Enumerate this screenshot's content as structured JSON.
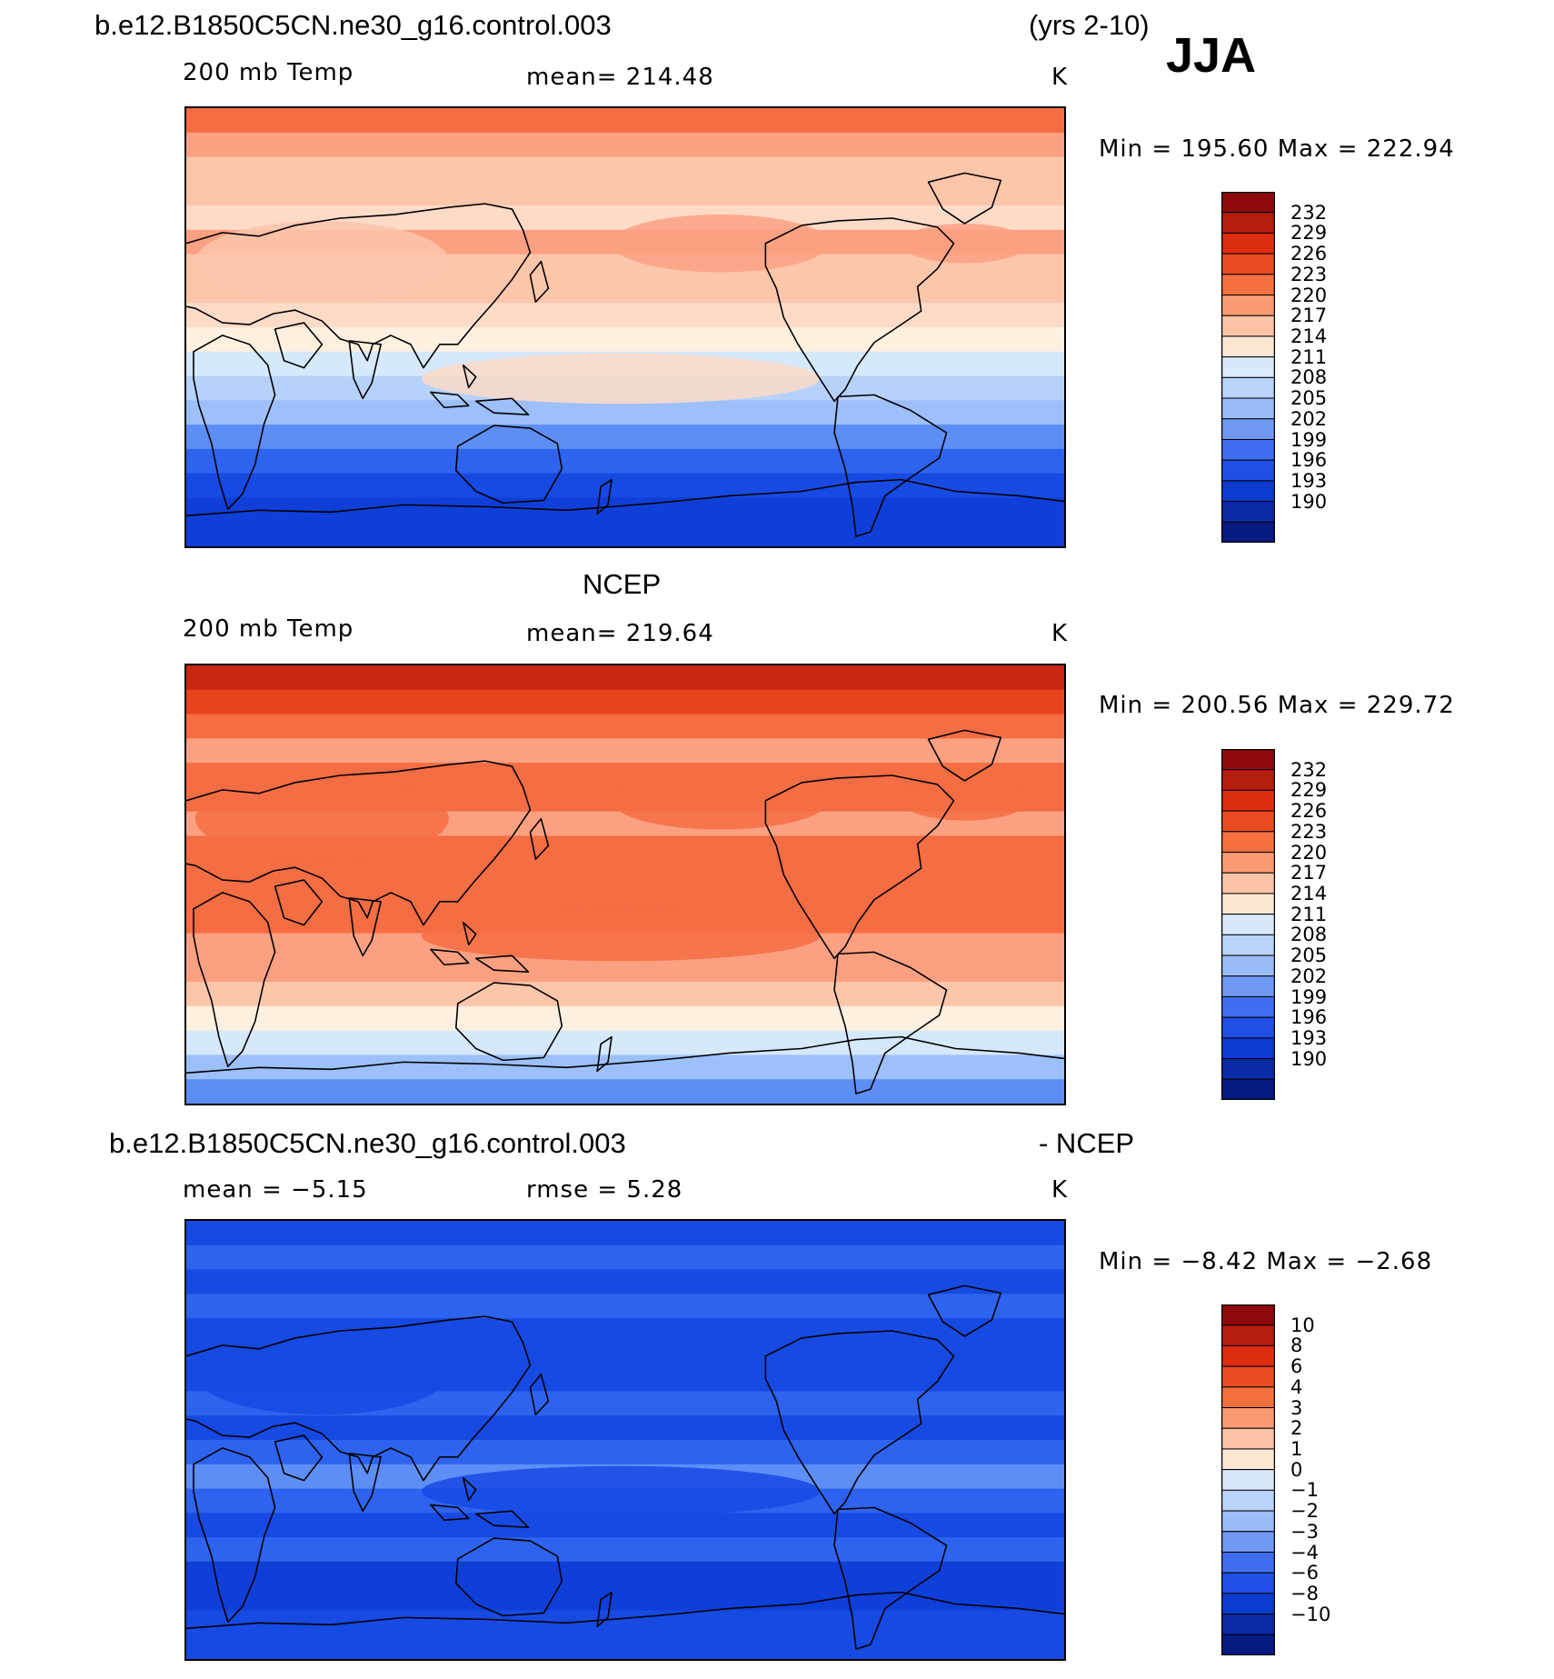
{
  "header": {
    "case_name": "b.e12.B1850C5CN.ne30_g16.control.003",
    "years": "(yrs 2-10)",
    "season": "JJA"
  },
  "panels": [
    {
      "title": "",
      "variable": "200 mb Temp",
      "stat_left": "200 mb Temp",
      "mean_text": "mean= 214.48",
      "units": "K",
      "minmax": "Min = 195.60 Max = 222.94",
      "colorbar_labels": [
        "232",
        "229",
        "226",
        "223",
        "220",
        "217",
        "214",
        "211",
        "208",
        "205",
        "202",
        "199",
        "196",
        "193",
        "190"
      ],
      "field_bands": [
        "#f46d43",
        "#fca082",
        "#fcc6ab",
        "#fcc6ab",
        "#fddbc7",
        "#fca082",
        "#fcc6ab",
        "#fcc6ab",
        "#fddbc7",
        "#fff0e0",
        "#d6e8fb",
        "#b6d2fb",
        "#9dbffa",
        "#5d8ef5",
        "#2d63ee",
        "#1749e3",
        "#0f3fd8",
        "#0f3fd8"
      ]
    },
    {
      "title": "NCEP",
      "variable": "200 mb Temp",
      "stat_left": "200 mb Temp",
      "mean_text": "mean= 219.64",
      "units": "K",
      "minmax": "Min = 200.56 Max = 229.72",
      "colorbar_labels": [
        "232",
        "229",
        "226",
        "223",
        "220",
        "217",
        "214",
        "211",
        "208",
        "205",
        "202",
        "199",
        "196",
        "193",
        "190"
      ],
      "field_bands": [
        "#c92712",
        "#e8431d",
        "#f46d43",
        "#fca082",
        "#f46d43",
        "#f46d43",
        "#fca082",
        "#f46d43",
        "#f46d43",
        "#f46d43",
        "#f46d43",
        "#fca082",
        "#fca082",
        "#fcc6ab",
        "#fff0e0",
        "#d6e8fb",
        "#9dbffa",
        "#5d8ef5"
      ]
    },
    {
      "title": "b.e12.B1850C5CN.ne30_g16.control.003",
      "title_right": "- NCEP",
      "stat_left": "mean =   −5.15",
      "mean_text": "rmse =    5.28",
      "units": "K",
      "minmax": "Min =  −8.42 Max =  −2.68",
      "colorbar_labels": [
        "10",
        "8",
        "6",
        "4",
        "3",
        "2",
        "1",
        "0",
        "−1",
        "−2",
        "−3",
        "−4",
        "−6",
        "−8",
        "−10"
      ],
      "field_bands": [
        "#1749e3",
        "#2d63ee",
        "#1749e3",
        "#2d63ee",
        "#1749e3",
        "#1749e3",
        "#1749e3",
        "#2d63ee",
        "#1749e3",
        "#2d63ee",
        "#5d8ef5",
        "#2d63ee",
        "#1749e3",
        "#2d63ee",
        "#0f3fd8",
        "#0f3fd8",
        "#1749e3",
        "#1749e3"
      ]
    }
  ],
  "colorbar_colors": [
    "#8e0a0a",
    "#b51d0e",
    "#de2d0f",
    "#ea4b20",
    "#f4713f",
    "#fa9a73",
    "#fcc4a6",
    "#fde7d2",
    "#d9e9fb",
    "#b9d3fb",
    "#9abcf9",
    "#6f99f3",
    "#3f6ff0",
    "#1f4fe6",
    "#0b3ccf",
    "#0a2ba6",
    "#061a80"
  ]
}
